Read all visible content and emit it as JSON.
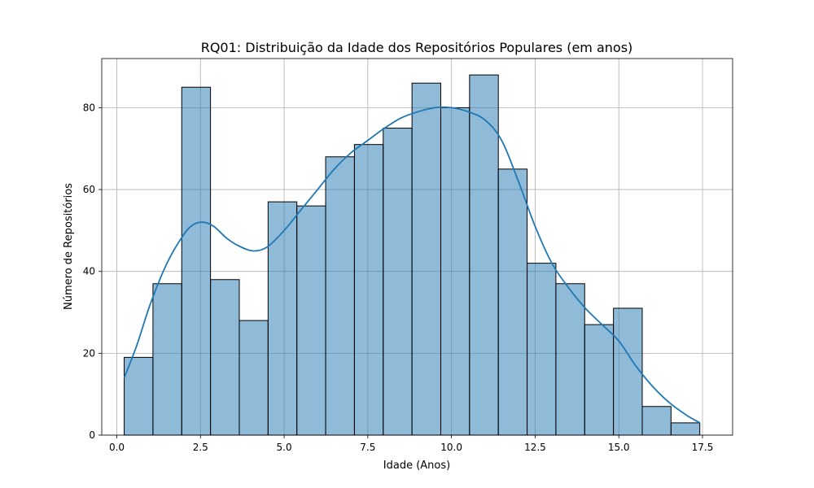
{
  "chart_data": {
    "type": "bar",
    "title": "RQ01: Distribuição da Idade dos Repositórios Populares (em anos)",
    "xlabel": "Idade (Anos)",
    "ylabel": "Número de Repositórios",
    "xlim": [
      -0.45,
      18.4
    ],
    "ylim": [
      0,
      92
    ],
    "xticks": [
      0.0,
      2.5,
      5.0,
      7.5,
      10.0,
      12.5,
      15.0,
      17.5
    ],
    "xtick_labels": [
      "0.0",
      "2.5",
      "5.0",
      "7.5",
      "10.0",
      "12.5",
      "15.0",
      "17.5"
    ],
    "yticks": [
      0,
      20,
      40,
      60,
      80
    ],
    "ytick_labels": [
      "0",
      "20",
      "40",
      "60",
      "80"
    ],
    "grid": true,
    "bar_color": "#1f77b4",
    "bin_edges": [
      0.22,
      1.08,
      1.94,
      2.8,
      3.66,
      4.52,
      5.38,
      6.24,
      7.1,
      7.96,
      8.82,
      9.68,
      10.54,
      11.4,
      12.26,
      13.12,
      13.98,
      14.84,
      15.7,
      16.56,
      17.42
    ],
    "values": [
      19,
      37,
      85,
      38,
      28,
      57,
      56,
      68,
      71,
      75,
      86,
      80,
      88,
      65,
      42,
      37,
      27,
      31,
      7,
      3
    ],
    "kde": {
      "x": [
        0.22,
        0.6,
        1.0,
        1.5,
        2.0,
        2.3,
        2.6,
        2.9,
        3.3,
        3.7,
        4.1,
        4.5,
        5.0,
        5.5,
        6.0,
        6.5,
        7.0,
        7.5,
        8.0,
        8.5,
        9.0,
        9.5,
        10.0,
        10.5,
        11.0,
        11.5,
        12.0,
        12.5,
        13.0,
        13.5,
        14.0,
        14.5,
        15.0,
        15.5,
        16.0,
        16.5,
        17.0,
        17.42
      ],
      "y": [
        14,
        22,
        32,
        42,
        49,
        51.5,
        52,
        51,
        48,
        46,
        45,
        46,
        50,
        55,
        60,
        65,
        69,
        72,
        75,
        77.5,
        79,
        80,
        80,
        79,
        77,
        72,
        62,
        51,
        42,
        36,
        31,
        27,
        23,
        17,
        12,
        8,
        5,
        3
      ]
    }
  }
}
